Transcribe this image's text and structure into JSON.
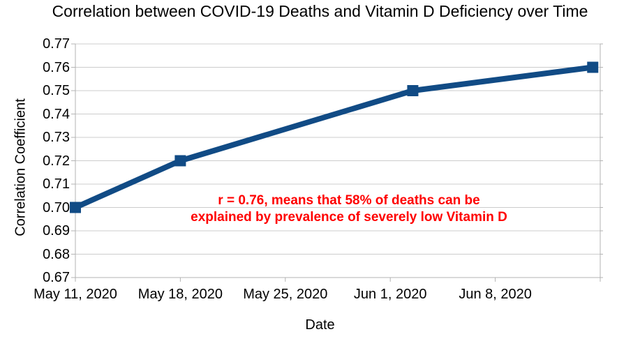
{
  "chart_data": {
    "type": "line",
    "title": "Correlation between COVID-19 Deaths and Vitamin D Deficiency over Time",
    "xlabel": "Date",
    "ylabel": "Correlation Coefficient",
    "ylim": [
      0.67,
      0.77
    ],
    "y_tick_step": 0.01,
    "y_ticks": [
      "0.77",
      "0.76",
      "0.75",
      "0.74",
      "0.73",
      "0.72",
      "0.71",
      "0.70",
      "0.69",
      "0.68",
      "0.67"
    ],
    "x_range_days": [
      0,
      35
    ],
    "x_ticks": [
      {
        "label": "May 11, 2020",
        "day": 0
      },
      {
        "label": "May 18, 2020",
        "day": 7
      },
      {
        "label": "May 25, 2020",
        "day": 14
      },
      {
        "label": "Jun 1, 2020",
        "day": 21
      },
      {
        "label": "Jun 8, 2020",
        "day": 28
      },
      {
        "label": "",
        "day": 35
      }
    ],
    "grid": "horizontal",
    "legend": "none",
    "series": [
      {
        "color": "#114b85",
        "marker": "square",
        "points": [
          {
            "date": "May 11, 2020",
            "day": 0,
            "value": 0.7
          },
          {
            "date": "May 18, 2020",
            "day": 7,
            "value": 0.72
          },
          {
            "date": "Jun 2, 2020",
            "day": 22.5,
            "value": 0.75
          },
          {
            "date": "Jun 14, 2020",
            "day": 34.5,
            "value": 0.76
          }
        ]
      }
    ],
    "annotation": {
      "lines": [
        "r = 0.76, means that 58% of deaths can be",
        "explained by prevalence of severely low Vitamin D"
      ],
      "color": "#ff0000"
    },
    "colors": {
      "gridline": "#cccccc",
      "axis": "#b3b3b3",
      "text": "#000000",
      "background": "#ffffff"
    }
  }
}
